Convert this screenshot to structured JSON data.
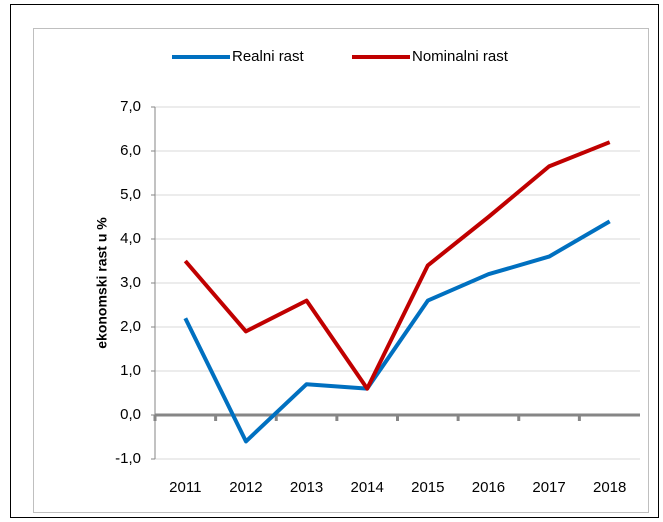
{
  "chart_data": {
    "type": "line",
    "y_axis_label": "ekonomski rast u %",
    "categories": [
      "2011",
      "2012",
      "2013",
      "2014",
      "2015",
      "2016",
      "2017",
      "2018"
    ],
    "series": [
      {
        "name": "Realni rast",
        "color": "#0070c0",
        "values": [
          2.2,
          -0.6,
          0.7,
          0.6,
          2.6,
          3.2,
          3.6,
          4.4
        ]
      },
      {
        "name": "Nominalni rast",
        "color": "#c00000",
        "values": [
          3.5,
          1.9,
          2.6,
          0.6,
          3.4,
          4.5,
          5.65,
          6.2
        ]
      }
    ],
    "ylim": [
      -1,
      7
    ],
    "yticks": [
      {
        "value": -1,
        "label": "-1,0"
      },
      {
        "value": 0,
        "label": "0,0"
      },
      {
        "value": 1,
        "label": "1,0"
      },
      {
        "value": 2,
        "label": "2,0"
      },
      {
        "value": 3,
        "label": "3,0"
      },
      {
        "value": 4,
        "label": "4,0"
      },
      {
        "value": 5,
        "label": "5,0"
      },
      {
        "value": 6,
        "label": "6,0"
      },
      {
        "value": 7,
        "label": "7,0"
      }
    ],
    "grid": true,
    "legend": "top"
  }
}
